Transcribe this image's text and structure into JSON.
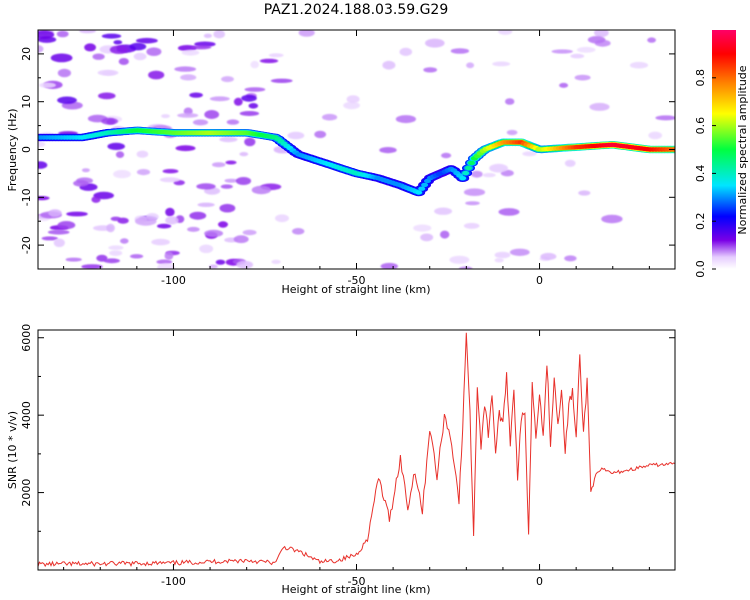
{
  "chart_data": [
    {
      "type": "heatmap",
      "title": "PAZ1.2024.188.03.59.G29",
      "xlabel": "Height of straight line (km)",
      "ylabel": "Frequency (Hz)",
      "xlim": [
        -137,
        37
      ],
      "ylim": [
        -25,
        25
      ],
      "xticks": [
        -100,
        -50,
        0
      ],
      "yticks": [
        20,
        10,
        0,
        -10,
        -20
      ],
      "xtick_labels": [
        "-100",
        "-50",
        "0"
      ],
      "ytick_labels": [
        "20",
        "10",
        "0",
        "-10",
        "-20"
      ],
      "colorbar": {
        "label": "Normalized spectral amplitude",
        "range": [
          0,
          1
        ],
        "ticks": [
          "0.0",
          "0.2",
          "0.4",
          "0.6",
          "0.8"
        ],
        "colormap": [
          "#ffffff",
          "#e6ccff",
          "#7a00e6",
          "#0000ff",
          "#00e6ff",
          "#00ff40",
          "#ffff00",
          "#ff8000",
          "#ff0000",
          "#ff0066"
        ]
      },
      "ridge": {
        "x": [
          -137,
          -125,
          -118,
          -110,
          -100,
          -90,
          -80,
          -72,
          -66,
          -58,
          -50,
          -44,
          -38,
          -33,
          -30,
          -27,
          -24,
          -21,
          -18,
          -15,
          -10,
          -5,
          0,
          10,
          20,
          30,
          37
        ],
        "frequency": [
          2.5,
          2.5,
          3.5,
          4,
          3.5,
          3.5,
          3.5,
          2.5,
          -1,
          -3,
          -5,
          -6,
          -7.5,
          -9,
          -6,
          -5,
          -4,
          -6,
          -2,
          0,
          1.5,
          1.5,
          0,
          0.5,
          1,
          0,
          0
        ],
        "amplitude": [
          0.3,
          0.35,
          0.4,
          0.5,
          0.55,
          0.6,
          0.55,
          0.45,
          0.3,
          0.35,
          0.4,
          0.3,
          0.3,
          0.35,
          0.3,
          0.25,
          0.3,
          0.35,
          0.5,
          0.6,
          0.75,
          0.85,
          0.6,
          0.85,
          0.95,
          0.9,
          0.8
        ]
      }
    },
    {
      "type": "line",
      "xlabel": "Height of straight line (km)",
      "ylabel": "SNR (10 * v/v)",
      "xlim": [
        -137,
        37
      ],
      "ylim": [
        0,
        6200
      ],
      "xticks": [
        -100,
        -50,
        0
      ],
      "yticks": [
        2000,
        4000,
        6000
      ],
      "xtick_labels": [
        "-100",
        "-50",
        "0"
      ],
      "ytick_labels": [
        "2000",
        "4000",
        "6000"
      ],
      "series": [
        {
          "color": "#e8312b",
          "x": [
            -137,
            -120,
            -100,
            -80,
            -72,
            -70,
            -65,
            -60,
            -55,
            -50,
            -47,
            -44,
            -41,
            -38,
            -36,
            -34,
            -32,
            -30,
            -28,
            -26,
            -24,
            -22,
            -21,
            -20,
            -19,
            -18,
            -17,
            -16,
            -15,
            -14,
            -13,
            -12,
            -11,
            -10,
            -9,
            -8,
            -7,
            -6,
            -5,
            -4,
            -3,
            -2,
            -1,
            0,
            1,
            2,
            3,
            4,
            5,
            6,
            7,
            8,
            9,
            10,
            11,
            12,
            13,
            14,
            15,
            17,
            20,
            25,
            30,
            37
          ],
          "y": [
            150,
            160,
            180,
            250,
            180,
            600,
            450,
            200,
            250,
            400,
            800,
            2400,
            1300,
            2900,
            1600,
            2600,
            1500,
            3700,
            2400,
            4000,
            3300,
            1800,
            3600,
            6200,
            4000,
            900,
            4800,
            3200,
            4300,
            3500,
            4600,
            3000,
            4100,
            3700,
            5100,
            3300,
            4700,
            2400,
            3900,
            4000,
            1000,
            4800,
            3500,
            4600,
            3400,
            5400,
            3300,
            5000,
            3800,
            4700,
            3000,
            4300,
            4600,
            3400,
            5500,
            3500,
            4900,
            2000,
            2400,
            2600,
            2500,
            2600,
            2700,
            2750
          ]
        }
      ]
    }
  ]
}
